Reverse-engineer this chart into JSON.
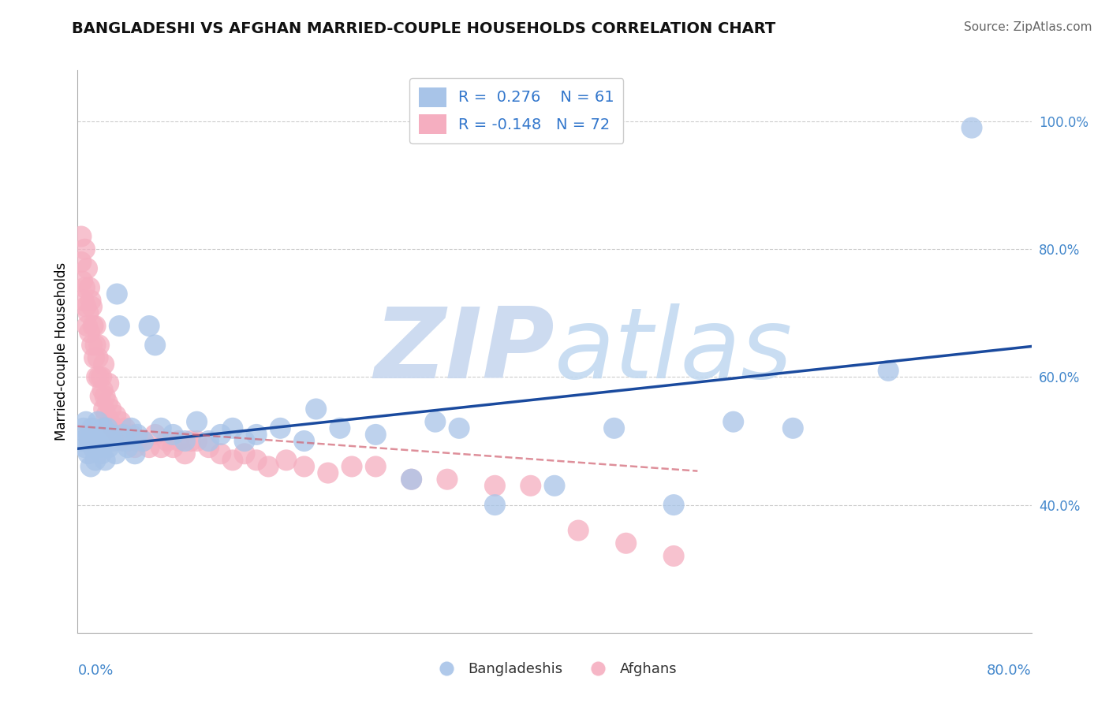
{
  "title": "BANGLADESHI VS AFGHAN MARRIED-COUPLE HOUSEHOLDS CORRELATION CHART",
  "source": "Source: ZipAtlas.com",
  "ylabel": "Married-couple Households",
  "xmin": 0.0,
  "xmax": 0.8,
  "ymin": 0.2,
  "ymax": 1.08,
  "legend_r1": "R =  0.276",
  "legend_n1": "N = 61",
  "legend_r2": "R = -0.148",
  "legend_n2": "N = 72",
  "blue_color": "#a8c4e8",
  "pink_color": "#f5aec0",
  "blue_line_color": "#1a4a9e",
  "pink_line_color": "#d06070",
  "watermark_blue": "#c8d8ef",
  "watermark_atlas": "#b0c8e8",
  "title_fontsize": 14,
  "source_fontsize": 11,
  "blue_x": [
    0.004,
    0.005,
    0.006,
    0.007,
    0.008,
    0.009,
    0.01,
    0.011,
    0.012,
    0.013,
    0.014,
    0.015,
    0.016,
    0.017,
    0.018,
    0.019,
    0.02,
    0.021,
    0.022,
    0.023,
    0.025,
    0.026,
    0.028,
    0.03,
    0.032,
    0.033,
    0.035,
    0.038,
    0.04,
    0.042,
    0.045,
    0.048,
    0.05,
    0.055,
    0.06,
    0.065,
    0.07,
    0.08,
    0.09,
    0.1,
    0.11,
    0.12,
    0.13,
    0.14,
    0.15,
    0.17,
    0.19,
    0.2,
    0.22,
    0.25,
    0.28,
    0.3,
    0.32,
    0.35,
    0.4,
    0.45,
    0.5,
    0.55,
    0.6,
    0.68,
    0.75
  ],
  "blue_y": [
    0.5,
    0.52,
    0.49,
    0.53,
    0.51,
    0.48,
    0.5,
    0.46,
    0.52,
    0.49,
    0.51,
    0.47,
    0.5,
    0.53,
    0.49,
    0.51,
    0.48,
    0.5,
    0.52,
    0.47,
    0.52,
    0.49,
    0.51,
    0.5,
    0.48,
    0.73,
    0.68,
    0.51,
    0.5,
    0.49,
    0.52,
    0.48,
    0.51,
    0.5,
    0.68,
    0.65,
    0.52,
    0.51,
    0.5,
    0.53,
    0.5,
    0.51,
    0.52,
    0.5,
    0.51,
    0.52,
    0.5,
    0.55,
    0.52,
    0.51,
    0.44,
    0.53,
    0.52,
    0.4,
    0.43,
    0.52,
    0.4,
    0.53,
    0.52,
    0.61,
    0.99
  ],
  "pink_x": [
    0.003,
    0.004,
    0.005,
    0.006,
    0.007,
    0.008,
    0.009,
    0.01,
    0.011,
    0.012,
    0.013,
    0.014,
    0.015,
    0.016,
    0.017,
    0.018,
    0.019,
    0.02,
    0.021,
    0.022,
    0.023,
    0.024,
    0.025,
    0.027,
    0.028,
    0.03,
    0.032,
    0.034,
    0.036,
    0.038,
    0.04,
    0.042,
    0.045,
    0.048,
    0.05,
    0.055,
    0.06,
    0.065,
    0.07,
    0.075,
    0.08,
    0.085,
    0.09,
    0.095,
    0.1,
    0.11,
    0.12,
    0.13,
    0.14,
    0.15,
    0.16,
    0.175,
    0.19,
    0.21,
    0.23,
    0.25,
    0.28,
    0.31,
    0.35,
    0.38,
    0.42,
    0.46,
    0.5,
    0.003,
    0.006,
    0.008,
    0.01,
    0.012,
    0.015,
    0.018,
    0.022,
    0.026
  ],
  "pink_y": [
    0.78,
    0.75,
    0.72,
    0.74,
    0.71,
    0.68,
    0.7,
    0.67,
    0.72,
    0.65,
    0.68,
    0.63,
    0.65,
    0.6,
    0.63,
    0.6,
    0.57,
    0.6,
    0.58,
    0.55,
    0.57,
    0.54,
    0.56,
    0.53,
    0.55,
    0.52,
    0.54,
    0.51,
    0.53,
    0.5,
    0.52,
    0.5,
    0.51,
    0.49,
    0.5,
    0.5,
    0.49,
    0.51,
    0.49,
    0.5,
    0.49,
    0.5,
    0.48,
    0.5,
    0.5,
    0.49,
    0.48,
    0.47,
    0.48,
    0.47,
    0.46,
    0.47,
    0.46,
    0.45,
    0.46,
    0.46,
    0.44,
    0.44,
    0.43,
    0.43,
    0.36,
    0.34,
    0.32,
    0.82,
    0.8,
    0.77,
    0.74,
    0.71,
    0.68,
    0.65,
    0.62,
    0.59
  ],
  "blue_line_x0": 0.0,
  "blue_line_x1": 0.8,
  "blue_line_y0": 0.488,
  "blue_line_y1": 0.648,
  "pink_line_x0": 0.0,
  "pink_line_x1": 0.52,
  "pink_line_y0": 0.523,
  "pink_line_y1": 0.453
}
